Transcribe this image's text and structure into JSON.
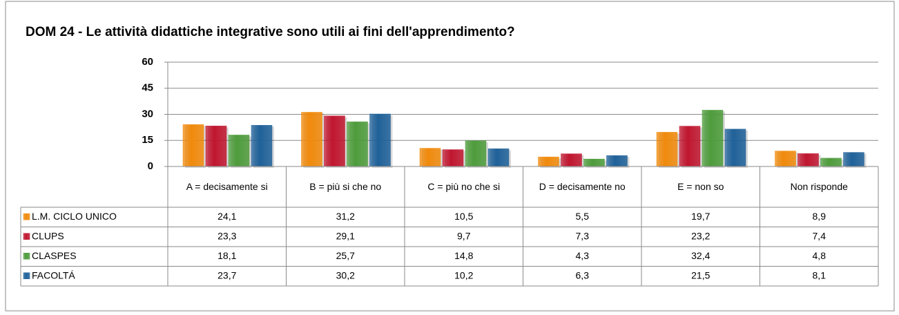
{
  "chart_data": {
    "type": "bar",
    "title": "DOM 24 - Le attività didattiche integrative sono utili ai fini dell'apprendimento?",
    "categories": [
      "A = decisamente si",
      "B = più si che no",
      "C = più no che si",
      "D = decisamente no",
      "E = non so",
      "Non risponde"
    ],
    "series": [
      {
        "name": "L.M. CICLO UNICO",
        "color": "#f08a0c",
        "values": [
          24.1,
          31.2,
          10.5,
          5.5,
          19.7,
          8.9
        ],
        "value_labels": [
          "24,1",
          "31,2",
          "10,5",
          "5,5",
          "19,7",
          "8,9"
        ]
      },
      {
        "name": "CLUPS",
        "color": "#c0162f",
        "values": [
          23.3,
          29.1,
          9.7,
          7.3,
          23.2,
          7.4
        ],
        "value_labels": [
          "23,3",
          "29,1",
          "9,7",
          "7,3",
          "23,2",
          "7,4"
        ]
      },
      {
        "name": "CLASPES",
        "color": "#4e9c3c",
        "values": [
          18.1,
          25.7,
          14.8,
          4.3,
          32.4,
          4.8
        ],
        "value_labels": [
          "18,1",
          "25,7",
          "14,8",
          "4,3",
          "32,4",
          "4,8"
        ]
      },
      {
        "name": "FACOLTÁ",
        "color": "#1f6199",
        "values": [
          23.7,
          30.2,
          10.2,
          6.3,
          21.5,
          8.1
        ],
        "value_labels": [
          "23,7",
          "30,2",
          "10,2",
          "6,3",
          "21,5",
          "8,1"
        ]
      }
    ],
    "ylim": [
      0,
      60
    ],
    "yticks": [
      0,
      15,
      30,
      45,
      60
    ],
    "grid": true
  }
}
